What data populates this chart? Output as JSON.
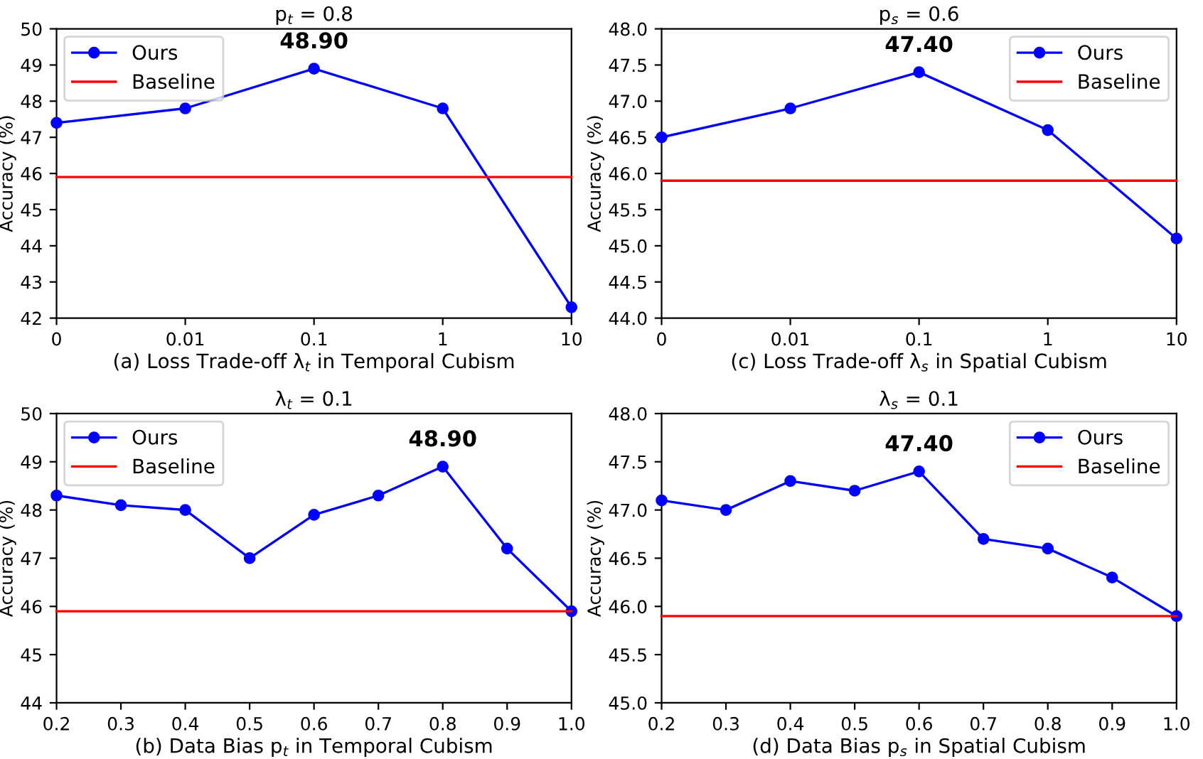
{
  "chart_data": [
    {
      "type": "line",
      "title": "p$_{t}$ = 0.8",
      "xlabel": "(a) Loss Trade-off λ$_{t}$ in Temporal Cubism",
      "ylabel": "Accuracy (%)",
      "categories": [
        "0",
        "0.01",
        "0.1",
        "1",
        "10"
      ],
      "series": [
        {
          "name": "Ours",
          "color": "#0000ff",
          "marker": "circle",
          "values": [
            47.4,
            47.8,
            48.9,
            47.8,
            42.3
          ]
        },
        {
          "name": "Baseline",
          "color": "#ff0000",
          "marker": "none",
          "values": [
            45.9,
            45.9,
            45.9,
            45.9,
            45.9
          ]
        }
      ],
      "ylim": [
        42,
        50
      ],
      "yticks": [
        42,
        43,
        44,
        45,
        46,
        47,
        48,
        49,
        50
      ],
      "annotations": [
        {
          "text": "48.90",
          "x": "0.1",
          "y": 48.9
        }
      ],
      "legend": "top left",
      "grid": false
    },
    {
      "type": "line",
      "title": "p$_{s}$ = 0.6",
      "xlabel": "(c) Loss Trade-off λ$_{s}$ in Spatial Cubism",
      "ylabel": "Accuracy (%)",
      "categories": [
        "0",
        "0.01",
        "0.1",
        "1",
        "10"
      ],
      "series": [
        {
          "name": "Ours",
          "color": "#0000ff",
          "marker": "circle",
          "values": [
            46.5,
            46.9,
            47.4,
            46.6,
            45.1
          ]
        },
        {
          "name": "Baseline",
          "color": "#ff0000",
          "marker": "none",
          "values": [
            45.9,
            45.9,
            45.9,
            45.9,
            45.9
          ]
        }
      ],
      "ylim": [
        44,
        48
      ],
      "yticks": [
        {
          "value": 44,
          "label": "44.0"
        },
        44.5,
        {
          "value": 45,
          "label": "45.0"
        },
        45.5,
        {
          "value": 46,
          "label": "46.0"
        },
        46.5,
        {
          "value": 47,
          "label": "47.0"
        },
        47.5,
        {
          "value": 48,
          "label": "48.0"
        }
      ],
      "annotations": [
        {
          "text": "47.40",
          "x": "0.1",
          "y": 47.4
        }
      ],
      "legend": "top right",
      "grid": false
    },
    {
      "type": "line",
      "title": "λ$_{t}$ = 0.1",
      "xlabel": "(b) Data Bias p$_{t}$ in Temporal Cubism",
      "ylabel": "Accuracy (%)",
      "x": [
        0.2,
        0.3,
        0.4,
        0.5,
        0.6,
        0.7,
        0.8,
        0.9,
        1.0
      ],
      "series": [
        {
          "name": "Ours",
          "color": "#0000ff",
          "marker": "circle",
          "values": [
            48.3,
            48.1,
            48.0,
            47.0,
            47.9,
            48.3,
            48.9,
            47.2,
            45.9
          ]
        },
        {
          "name": "Baseline",
          "color": "#ff0000",
          "marker": "none",
          "values": [
            45.9,
            45.9,
            45.9,
            45.9,
            45.9,
            45.9,
            45.9,
            45.9,
            45.9
          ]
        }
      ],
      "xlim": [
        0.2,
        1.0
      ],
      "xticks": [
        0.2,
        0.3,
        0.4,
        0.5,
        0.6,
        0.7,
        0.8,
        0.9,
        {
          "value": 1.0,
          "label": "1.0"
        }
      ],
      "ylim": [
        44,
        50
      ],
      "yticks": [
        44,
        45,
        46,
        47,
        48,
        49,
        50
      ],
      "annotations": [
        {
          "text": "48.90",
          "x": 0.8,
          "y": 48.9
        }
      ],
      "legend": "top left",
      "grid": false
    },
    {
      "type": "line",
      "title": "λ$_{s}$ = 0.1",
      "xlabel": "(d) Data Bias p$_{s}$ in Spatial Cubism",
      "ylabel": "Accuracy (%)",
      "x": [
        0.2,
        0.3,
        0.4,
        0.5,
        0.6,
        0.7,
        0.8,
        0.9,
        1.0
      ],
      "series": [
        {
          "name": "Ours",
          "color": "#0000ff",
          "marker": "circle",
          "values": [
            47.1,
            47.0,
            47.3,
            47.2,
            47.4,
            46.7,
            46.6,
            46.3,
            45.9
          ]
        },
        {
          "name": "Baseline",
          "color": "#ff0000",
          "marker": "none",
          "values": [
            45.9,
            45.9,
            45.9,
            45.9,
            45.9,
            45.9,
            45.9,
            45.9,
            45.9
          ]
        }
      ],
      "xlim": [
        0.2,
        1.0
      ],
      "xticks": [
        0.2,
        0.3,
        0.4,
        0.5,
        0.6,
        0.7,
        0.8,
        0.9,
        {
          "value": 1.0,
          "label": "1.0"
        }
      ],
      "ylim": [
        45,
        48
      ],
      "yticks": [
        {
          "value": 45,
          "label": "45.0"
        },
        45.5,
        {
          "value": 46,
          "label": "46.0"
        },
        46.5,
        {
          "value": 47,
          "label": "47.0"
        },
        47.5,
        {
          "value": 48,
          "label": "48.0"
        }
      ],
      "annotations": [
        {
          "text": "47.40",
          "x": 0.6,
          "y": 47.4
        }
      ],
      "legend": "top right",
      "grid": false
    }
  ]
}
